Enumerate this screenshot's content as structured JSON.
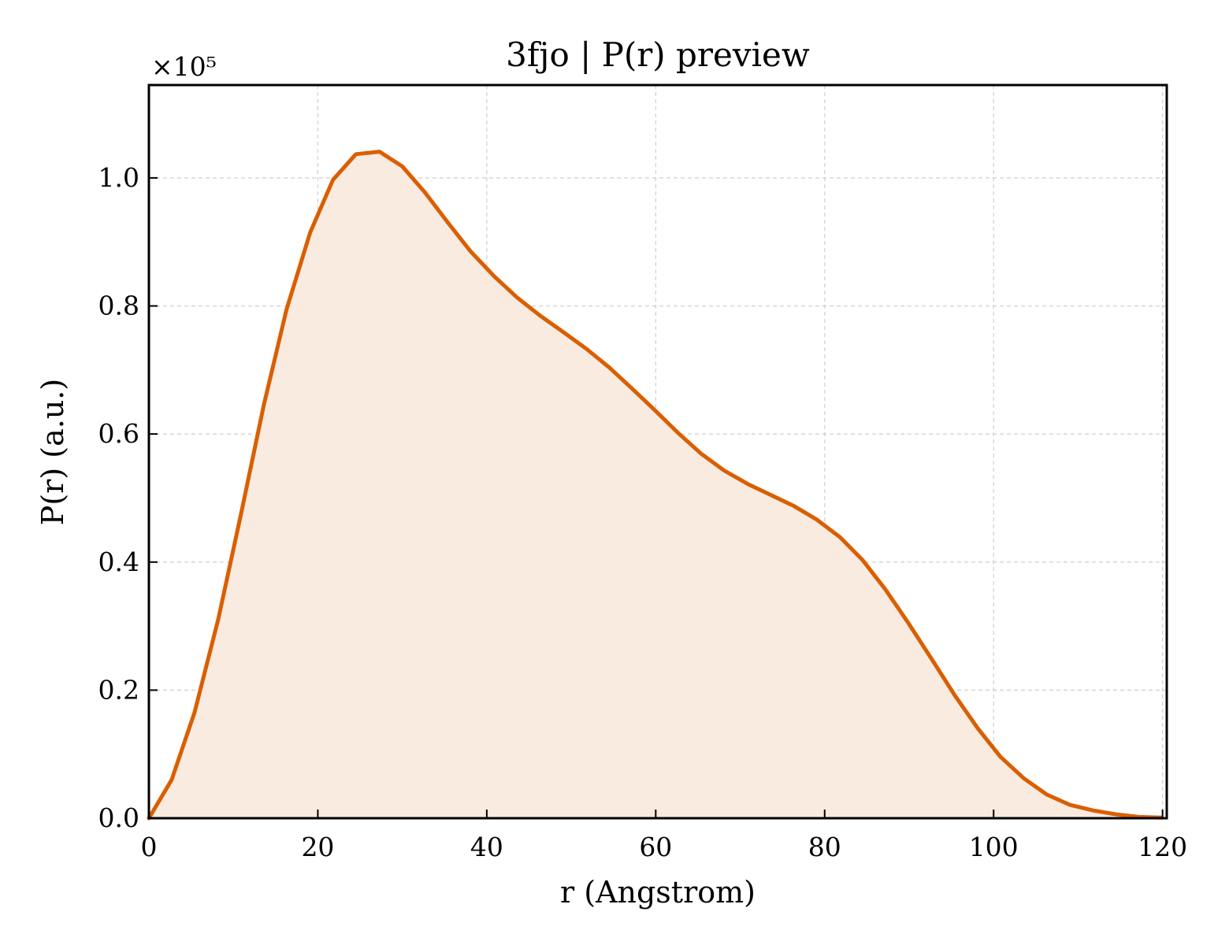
{
  "chart_data": {
    "type": "area",
    "title": "3fjo | P(r) preview",
    "xlabel": "r (Angstrom)",
    "ylabel": "P(r) (a.u.)",
    "y_multiplier_label": "×10⁵",
    "xlim": [
      0,
      120.5
    ],
    "ylim": [
      0,
      1.145
    ],
    "xticks": [
      0,
      20,
      40,
      60,
      80,
      100,
      120
    ],
    "xtick_labels": [
      "0",
      "20",
      "40",
      "60",
      "80",
      "100",
      "120"
    ],
    "yticks": [
      0.0,
      0.2,
      0.4,
      0.6,
      0.8,
      1.0
    ],
    "ytick_labels": [
      "0.0",
      "0.2",
      "0.4",
      "0.6",
      "0.8",
      "1.0"
    ],
    "grid": true,
    "colors": {
      "line": "#d95f02",
      "fill": "#f9ebe0"
    },
    "series": [
      {
        "x": [
          0,
          2.7,
          5.4,
          8.2,
          10.9,
          13.6,
          16.3,
          19.1,
          21.8,
          24.5,
          27.3,
          30.0,
          32.7,
          35.4,
          38.1,
          40.9,
          43.6,
          46.3,
          49.1,
          51.8,
          54.5,
          57.2,
          60.0,
          62.7,
          65.4,
          68.1,
          70.9,
          73.6,
          76.3,
          79.0,
          81.8,
          84.5,
          87.2,
          89.9,
          92.7,
          95.4,
          98.1,
          100.8,
          103.6,
          106.3,
          109.0,
          111.8,
          114.5,
          117.2,
          119.9
        ],
        "values": [
          0.0,
          0.06,
          0.165,
          0.31,
          0.475,
          0.645,
          0.795,
          0.915,
          0.997,
          1.037,
          1.041,
          1.018,
          0.977,
          0.93,
          0.885,
          0.846,
          0.813,
          0.785,
          0.759,
          0.733,
          0.704,
          0.671,
          0.636,
          0.601,
          0.569,
          0.543,
          0.522,
          0.505,
          0.488,
          0.467,
          0.439,
          0.403,
          0.357,
          0.305,
          0.248,
          0.192,
          0.141,
          0.096,
          0.062,
          0.037,
          0.021,
          0.012,
          0.006,
          0.002,
          0.001
        ]
      }
    ]
  }
}
